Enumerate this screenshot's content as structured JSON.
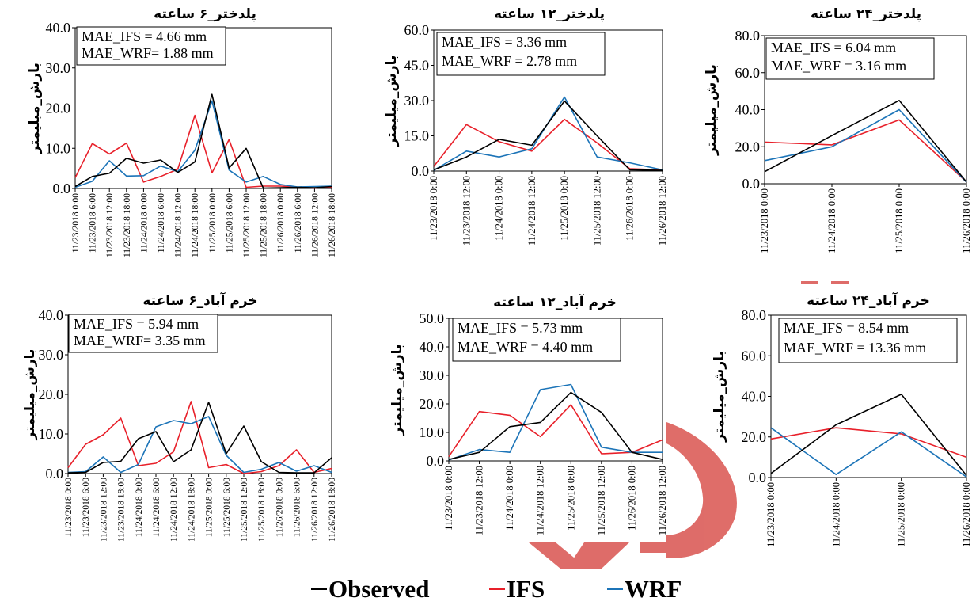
{
  "colors": {
    "observed": "#000000",
    "ifs": "#e8202a",
    "wrf": "#1c74b8",
    "watermark": "#d9534f"
  },
  "legend": {
    "observed": "Observed",
    "ifs": "IFS",
    "wrf": "WRF"
  },
  "chart_data": [
    {
      "type": "line",
      "title": "پلدختر_۶ ساعته",
      "ylabel": "بارش_میلیمتر",
      "xlabel": "",
      "ylim": [
        0,
        40
      ],
      "yticks": [
        "0.0",
        "10.0",
        "20.0",
        "30.0",
        "40.0"
      ],
      "yticks_values": [
        0,
        10,
        20,
        30,
        40
      ],
      "categories": [
        "11/23/2018 0:00",
        "11/23/2018 6:00",
        "11/23/2018 12:00",
        "11/23/2018 18:00",
        "11/24/2018 0:00",
        "11/24/2018 6:00",
        "11/24/2018 12:00",
        "11/24/2018 18:00",
        "11/25/2018 0:00",
        "11/25/2018 6:00",
        "11/25/2018 12:00",
        "11/25/2018 18:00",
        "11/26/2018 0:00",
        "11/26/2018 6:00",
        "11/26/2018 12:00",
        "11/26/2018 18:00"
      ],
      "annotations": [
        "MAE_IFS = 4.66 mm",
        "MAE_WRF= 1.88 mm"
      ],
      "series": [
        {
          "name": "Observed",
          "values": [
            0.5,
            3.0,
            3.8,
            7.5,
            6.3,
            7.1,
            4.0,
            6.6,
            23.4,
            5.1,
            10.0,
            0.1,
            0.2,
            0.3,
            0.2,
            0.5
          ]
        },
        {
          "name": "IFS",
          "values": [
            2.7,
            11.2,
            8.6,
            11.3,
            1.6,
            3.0,
            4.8,
            18.2,
            3.9,
            12.2,
            0.3,
            0.6,
            0.6,
            0.3,
            0.1,
            0.3
          ]
        },
        {
          "name": "WRF",
          "values": [
            0.3,
            1.8,
            6.9,
            3.1,
            3.2,
            5.6,
            4.2,
            9.5,
            21.8,
            4.6,
            1.6,
            3.0,
            1.0,
            0.4,
            0.5,
            0.6
          ]
        }
      ]
    },
    {
      "type": "line",
      "title": "پلدختر_۱۲ ساعته",
      "ylabel": "بارش_میلیمتر",
      "xlabel": "",
      "ylim": [
        0,
        60
      ],
      "yticks": [
        "0.0",
        "15.0",
        "30.0",
        "45.0",
        "60.0"
      ],
      "yticks_values": [
        0,
        15,
        30,
        45,
        60
      ],
      "categories": [
        "11/23/2018 0:00",
        "11/23/2018 12:00",
        "11/24/2018 0:00",
        "11/24/2018 12:00",
        "11/25/2018 0:00",
        "11/25/2018 12:00",
        "11/26/2018 0:00",
        "11/26/2018 12:00"
      ],
      "annotations": [
        "MAE_IFS = 3.36 mm",
        "MAE_WRF = 2.78 mm"
      ],
      "series": [
        {
          "name": "Observed",
          "values": [
            0.5,
            6.0,
            13.5,
            11.0,
            29.8,
            15.0,
            0.5,
            0.3
          ]
        },
        {
          "name": "IFS",
          "values": [
            2.0,
            19.8,
            12.5,
            8.5,
            22.0,
            12.0,
            1.0,
            0.5
          ]
        },
        {
          "name": "WRF",
          "values": [
            0.3,
            8.5,
            6.0,
            9.5,
            31.5,
            6.0,
            3.5,
            0.5
          ]
        }
      ]
    },
    {
      "type": "line",
      "title": "پلدختر_۲۴ ساعته",
      "ylabel": "بارش_میلیمتر",
      "xlabel": "",
      "ylim": [
        0,
        80
      ],
      "yticks": [
        "0.0",
        "20.0",
        "40.0",
        "60.0",
        "80.0"
      ],
      "yticks_values": [
        0,
        20,
        40,
        60,
        80
      ],
      "categories": [
        "11/23/2018 0:00",
        "11/24/2018 0:00",
        "11/25/2018 0:00",
        "11/26/2018 0:00"
      ],
      "annotations": [
        "MAE_IFS = 6.04 mm",
        "MAE_WRF = 3.16 mm"
      ],
      "series": [
        {
          "name": "Observed",
          "values": [
            6.5,
            26.0,
            45.0,
            1.0
          ]
        },
        {
          "name": "IFS",
          "values": [
            22.5,
            21.0,
            34.5,
            1.0
          ]
        },
        {
          "name": "WRF",
          "values": [
            12.5,
            20.0,
            40.0,
            0.8
          ]
        }
      ]
    },
    {
      "type": "line",
      "title": "خرم آباد_۶ ساعته",
      "ylabel": "بارش_میلیمتر",
      "xlabel": "",
      "ylim": [
        0,
        40
      ],
      "yticks": [
        "0.0",
        "10.0",
        "20.0",
        "30.0",
        "40.0"
      ],
      "yticks_values": [
        0,
        10,
        20,
        30,
        40
      ],
      "categories": [
        "11/23/2018 0:00",
        "11/23/2018 6:00",
        "11/23/2018 12:00",
        "11/23/2018 18:00",
        "11/24/2018 0:00",
        "11/24/2018 6:00",
        "11/24/2018 12:00",
        "11/24/2018 18:00",
        "11/25/2018 0:00",
        "11/25/2018 6:00",
        "11/25/2018 12:00",
        "11/25/2018 18:00",
        "11/26/2018 0:00",
        "11/26/2018 6:00",
        "11/26/2018 12:00",
        "11/26/2018 18:00"
      ],
      "annotations": [
        "MAE_IFS = 5.94 mm",
        "MAE_WRF= 3.35 mm"
      ],
      "series": [
        {
          "name": "Observed",
          "values": [
            0.2,
            0.3,
            2.8,
            3.1,
            8.8,
            10.6,
            3.0,
            6.0,
            18.0,
            5.0,
            12.0,
            3.0,
            0.3,
            0.2,
            0.2,
            4.0
          ]
        },
        {
          "name": "IFS",
          "values": [
            1.5,
            7.4,
            9.8,
            14.0,
            2.0,
            2.6,
            5.5,
            18.2,
            1.5,
            2.3,
            0.0,
            0.5,
            2.0,
            6.0,
            0.3,
            1.3
          ]
        },
        {
          "name": "WRF",
          "values": [
            0.3,
            0.5,
            4.2,
            0.3,
            2.3,
            11.8,
            13.4,
            12.6,
            14.4,
            4.6,
            0.3,
            1.1,
            2.8,
            0.6,
            2.0,
            0.3
          ]
        }
      ]
    },
    {
      "type": "line",
      "title": "خرم آباد_۱۲ ساعته",
      "ylabel": "بارش_میلیمتر",
      "xlabel": "",
      "ylim": [
        0,
        50
      ],
      "yticks": [
        "0.0",
        "10.0",
        "20.0",
        "30.0",
        "40.0",
        "50.0"
      ],
      "yticks_values": [
        0,
        10,
        20,
        30,
        40,
        50
      ],
      "categories": [
        "11/23/2018 0:00",
        "11/23/2018 12:00",
        "11/24/2018 0:00",
        "11/24/2018 12:00",
        "11/25/2018 0:00",
        "11/25/2018 12:00",
        "11/26/2018 0:00",
        "11/26/2018 12:00"
      ],
      "annotations": [
        "MAE_IFS = 5.73 mm",
        "MAE_WRF = 4.40 mm"
      ],
      "series": [
        {
          "name": "Observed",
          "values": [
            0.5,
            3.0,
            12.0,
            13.5,
            24.0,
            17.0,
            3.0,
            0.5
          ]
        },
        {
          "name": "IFS",
          "values": [
            1.5,
            17.3,
            16.0,
            8.5,
            19.7,
            2.5,
            3.0,
            7.4
          ]
        },
        {
          "name": "WRF",
          "values": [
            0.3,
            4.0,
            3.0,
            25.0,
            26.8,
            4.8,
            3.0,
            3.0
          ]
        }
      ]
    },
    {
      "type": "line",
      "title": "خرم آباد_۲۴ ساعته",
      "ylabel": "بارش_میلیمتر",
      "xlabel": "",
      "ylim": [
        0,
        80
      ],
      "yticks": [
        "0.0",
        "20.0",
        "40.0",
        "60.0",
        "80.0"
      ],
      "yticks_values": [
        0,
        20,
        40,
        60,
        80
      ],
      "categories": [
        "11/23/2018 0:00",
        "11/24/2018 0:00",
        "11/25/2018 0:00",
        "11/26/2018 0:00"
      ],
      "annotations": [
        "MAE_IFS = 8.54 mm",
        "MAE_WRF = 13.36 mm"
      ],
      "series": [
        {
          "name": "Observed",
          "values": [
            2.0,
            26.0,
            41.0,
            1.0
          ]
        },
        {
          "name": "IFS",
          "values": [
            19.0,
            24.5,
            21.5,
            10.0
          ]
        },
        {
          "name": "WRF",
          "values": [
            24.5,
            1.5,
            22.5,
            0.3
          ]
        }
      ]
    }
  ]
}
